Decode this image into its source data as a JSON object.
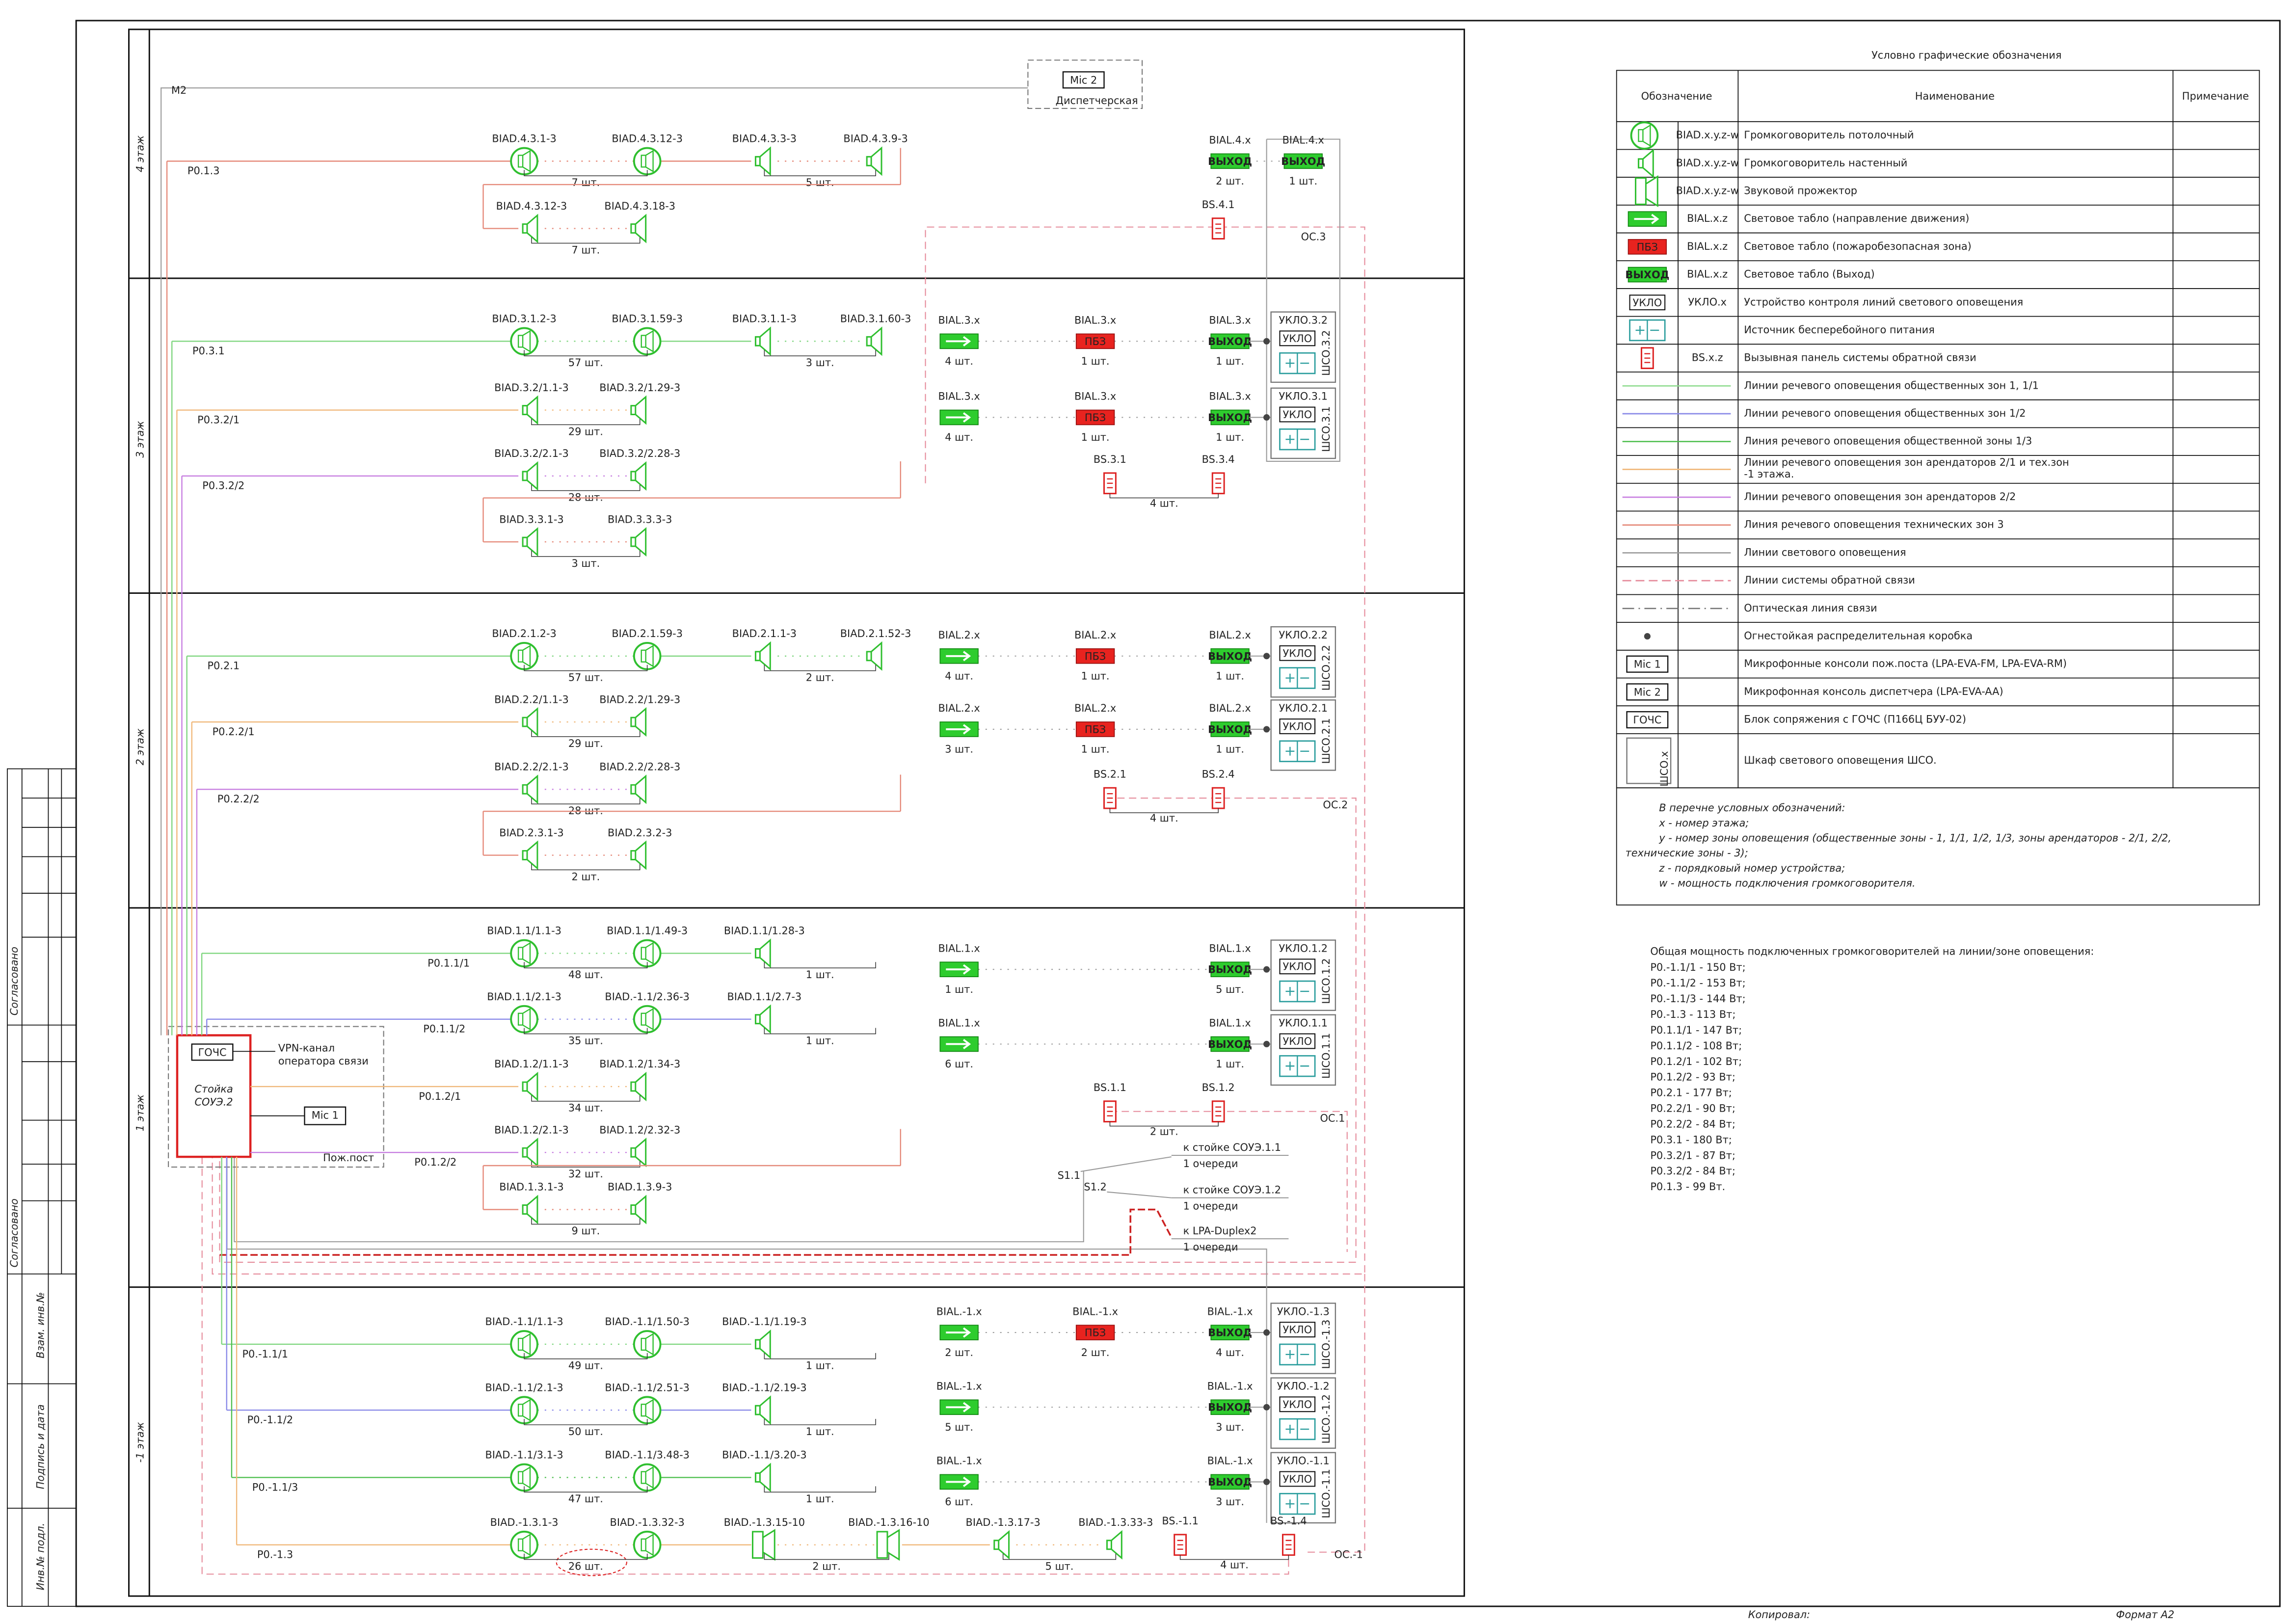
{
  "frame": {
    "side_labels": [
      "Согласовано",
      "Согласовано",
      "Взам. инв.№",
      "Подпись и дата",
      "Инв.№ подл."
    ],
    "copied": "Копировал:",
    "format": "Формат A2"
  },
  "symbols": {
    "exit": "ВЫХОД",
    "pbz": "ПБЗ",
    "uklo": "УКЛО"
  },
  "dispatch": {
    "line": "M2",
    "mic": "Mic 2",
    "room": "Диспетчерская"
  },
  "rack": {
    "gochs": "ГОЧС",
    "title": [
      "Стойка",
      "СОУЭ.2"
    ],
    "vpn": [
      "VPN-канал",
      "оператора связи"
    ],
    "mic": "Mic 1",
    "post": "Пож.пост",
    "links": [
      {
        "node": "S1.1",
        "target": "к стойке СОУЭ.1.1",
        "queue": "1 очереди"
      },
      {
        "node": "S1.2",
        "target": "к стойке СОУЭ.1.2",
        "queue": "1 очереди"
      },
      {
        "target": "к LPA-Duplex2",
        "queue": "1 очереди"
      }
    ]
  },
  "floors": [
    {
      "label": "4 этаж",
      "speaker_rows": [
        {
          "line": "P0.1.3",
          "color": "#e58a7a",
          "devices": [
            {
              "kind": "ceiling",
              "label": "BIAD.4.3.1-3"
            },
            {
              "kind": "ceiling",
              "label": "BIAD.4.3.12-3"
            },
            {
              "kind": "wall",
              "label": "BIAD.4.3.3-3"
            },
            {
              "kind": "wall",
              "label": "BIAD.4.3.9-3"
            }
          ],
          "counts": [
            "7 шт.",
            "5 шт."
          ]
        },
        {
          "color": "#e58a7a",
          "devices": [
            {
              "kind": "wall",
              "label": "BIAD.4.3.12-3"
            },
            {
              "kind": "wall",
              "label": "BIAD.4.3.18-3"
            }
          ],
          "counts": [
            "7 шт."
          ]
        }
      ],
      "light_rows": [
        {
          "devices": [
            {
              "kind": "exit",
              "label": "BIAL.4.x",
              "count": "2 шт."
            },
            {
              "kind": "exit",
              "label": "BIAL.4.x",
              "count": "1 шт."
            }
          ]
        }
      ],
      "panels": {
        "labels": [
          "BS.4.1"
        ],
        "loop": "ОС.3"
      }
    },
    {
      "label": "3 этаж",
      "speaker_rows": [
        {
          "line": "P0.3.1",
          "color": "#7fd67f",
          "devices": [
            {
              "kind": "ceiling",
              "label": "BIAD.3.1.2-3"
            },
            {
              "kind": "ceiling",
              "label": "BIAD.3.1.59-3"
            },
            {
              "kind": "wall",
              "label": "BIAD.3.1.1-3"
            },
            {
              "kind": "wall",
              "label": "BIAD.3.1.60-3"
            }
          ],
          "counts": [
            "57 шт.",
            "3 шт."
          ]
        },
        {
          "line": "P0.3.2/1",
          "color": "#f0b87a",
          "devices": [
            {
              "kind": "wall",
              "label": "BIAD.3.2/1.1-3"
            },
            {
              "kind": "wall",
              "label": "BIAD.3.2/1.29-3"
            }
          ],
          "counts": [
            "29 шт."
          ]
        },
        {
          "line": "P0.3.2/2",
          "color": "#c77ee0",
          "devices": [
            {
              "kind": "wall",
              "label": "BIAD.3.2/2.1-3"
            },
            {
              "kind": "wall",
              "label": "BIAD.3.2/2.28-3"
            }
          ],
          "counts": [
            "28 шт."
          ]
        },
        {
          "color": "#e58a7a",
          "devices": [
            {
              "kind": "wall",
              "label": "BIAD.3.3.1-3"
            },
            {
              "kind": "wall",
              "label": "BIAD.3.3.3-3"
            }
          ],
          "counts": [
            "3 шт."
          ]
        }
      ],
      "light_rows": [
        {
          "devices": [
            {
              "kind": "dir",
              "label": "BIAL.3.x",
              "count": "4 шт."
            },
            {
              "kind": "pbz",
              "label": "BIAL.3.x",
              "count": "1 шт."
            },
            {
              "kind": "exit",
              "label": "BIAL.3.x",
              "count": "1 шт."
            }
          ],
          "cabinet": {
            "uklo": "УКЛО.3.2",
            "shso": "ШСО.3.2"
          }
        },
        {
          "devices": [
            {
              "kind": "dir",
              "label": "BIAL.3.x",
              "count": "4 шт."
            },
            {
              "kind": "pbz",
              "label": "BIAL.3.x",
              "count": "1 шт."
            },
            {
              "kind": "exit",
              "label": "BIAL.3.x",
              "count": "1 шт."
            }
          ],
          "cabinet": {
            "uklo": "УКЛО.3.1",
            "shso": "ШСО.3.1"
          }
        }
      ],
      "panels": {
        "labels": [
          "BS.3.1",
          "BS.3.4"
        ],
        "count": "4 шт."
      }
    },
    {
      "label": "2 этаж",
      "speaker_rows": [
        {
          "line": "P0.2.1",
          "color": "#7fd67f",
          "devices": [
            {
              "kind": "ceiling",
              "label": "BIAD.2.1.2-3"
            },
            {
              "kind": "ceiling",
              "label": "BIAD.2.1.59-3"
            },
            {
              "kind": "wall",
              "label": "BIAD.2.1.1-3"
            },
            {
              "kind": "wall",
              "label": "BIAD.2.1.52-3"
            }
          ],
          "counts": [
            "57 шт.",
            "2 шт."
          ]
        },
        {
          "line": "P0.2.2/1",
          "color": "#f0b87a",
          "devices": [
            {
              "kind": "wall",
              "label": "BIAD.2.2/1.1-3"
            },
            {
              "kind": "wall",
              "label": "BIAD.2.2/1.29-3"
            }
          ],
          "counts": [
            "29 шт."
          ]
        },
        {
          "line": "P0.2.2/2",
          "color": "#c77ee0",
          "devices": [
            {
              "kind": "wall",
              "label": "BIAD.2.2/2.1-3"
            },
            {
              "kind": "wall",
              "label": "BIAD.2.2/2.28-3"
            }
          ],
          "counts": [
            "28 шт."
          ]
        },
        {
          "color": "#e58a7a",
          "devices": [
            {
              "kind": "wall",
              "label": "BIAD.2.3.1-3"
            },
            {
              "kind": "wall",
              "label": "BIAD.2.3.2-3"
            }
          ],
          "counts": [
            "2 шт."
          ]
        }
      ],
      "light_rows": [
        {
          "devices": [
            {
              "kind": "dir",
              "label": "BIAL.2.x",
              "count": "4 шт."
            },
            {
              "kind": "pbz",
              "label": "BIAL.2.x",
              "count": "1 шт."
            },
            {
              "kind": "exit",
              "label": "BIAL.2.x",
              "count": "1 шт."
            }
          ],
          "cabinet": {
            "uklo": "УКЛО.2.2",
            "shso": "ШСО.2.2"
          }
        },
        {
          "devices": [
            {
              "kind": "dir",
              "label": "BIAL.2.x",
              "count": "3 шт."
            },
            {
              "kind": "pbz",
              "label": "BIAL.2.x",
              "count": "1 шт."
            },
            {
              "kind": "exit",
              "label": "BIAL.2.x",
              "count": "1 шт."
            }
          ],
          "cabinet": {
            "uklo": "УКЛО.2.1",
            "shso": "ШСО.2.1"
          }
        }
      ],
      "panels": {
        "labels": [
          "BS.2.1",
          "BS.2.4"
        ],
        "count": "4 шт.",
        "loop": "ОС.2"
      }
    },
    {
      "label": "1 этаж",
      "speaker_rows": [
        {
          "line": "P0.1.1/1",
          "color": "#7fd67f",
          "devices": [
            {
              "kind": "ceiling",
              "label": "BIAD.1.1/1.1-3"
            },
            {
              "kind": "ceiling",
              "label": "BIAD.1.1/1.49-3"
            },
            {
              "kind": "wall",
              "label": "BIAD.1.1/1.28-3"
            }
          ],
          "counts": [
            "48 шт.",
            "1 шт."
          ]
        },
        {
          "line": "P0.1.1/2",
          "color": "#8a8ae8",
          "devices": [
            {
              "kind": "ceiling",
              "label": "BIAD.1.1/2.1-3"
            },
            {
              "kind": "ceiling",
              "label": "BIAD.-1.1/2.36-3"
            },
            {
              "kind": "wall",
              "label": "BIAD.1.1/2.7-3"
            }
          ],
          "counts": [
            "35 шт.",
            "1 шт."
          ]
        },
        {
          "line": "P0.1.2/1",
          "color": "#f0b87a",
          "devices": [
            {
              "kind": "wall",
              "label": "BIAD.1.2/1.1-3"
            },
            {
              "kind": "wall",
              "label": "BIAD.1.2/1.34-3"
            }
          ],
          "counts": [
            "34 шт."
          ]
        },
        {
          "line": "P0.1.2/2",
          "color": "#c77ee0",
          "devices": [
            {
              "kind": "wall",
              "label": "BIAD.1.2/2.1-3"
            },
            {
              "kind": "wall",
              "label": "BIAD.1.2/2.32-3"
            }
          ],
          "counts": [
            "32 шт."
          ]
        },
        {
          "color": "#e58a7a",
          "devices": [
            {
              "kind": "wall",
              "label": "BIAD.1.3.1-3"
            },
            {
              "kind": "wall",
              "label": "BIAD.1.3.9-3"
            }
          ],
          "counts": [
            "9 шт."
          ]
        }
      ],
      "light_rows": [
        {
          "devices": [
            {
              "kind": "dir",
              "label": "BIAL.1.x",
              "count": "1 шт."
            },
            {
              "kind": "exit",
              "label": "BIAL.1.x",
              "count": "5 шт."
            }
          ],
          "cabinet": {
            "uklo": "УКЛО.1.2",
            "shso": "ШСО.1.2"
          }
        },
        {
          "devices": [
            {
              "kind": "dir",
              "label": "BIAL.1.x",
              "count": "6 шт."
            },
            {
              "kind": "exit",
              "label": "BIAL.1.x",
              "count": "1 шт."
            }
          ],
          "cabinet": {
            "uklo": "УКЛО.1.1",
            "shso": "ШСО.1.1"
          }
        }
      ],
      "panels": {
        "labels": [
          "BS.1.1",
          "BS.1.2"
        ],
        "count": "2 шт.",
        "loop": "ОС.1"
      }
    },
    {
      "label": "-1 этаж",
      "speaker_rows": [
        {
          "line": "P0.-1.1/1",
          "color": "#7fd67f",
          "devices": [
            {
              "kind": "ceiling",
              "label": "BIAD.-1.1/1.1-3"
            },
            {
              "kind": "ceiling",
              "label": "BIAD.-1.1/1.50-3"
            },
            {
              "kind": "wall",
              "label": "BIAD.-1.1/1.19-3"
            }
          ],
          "counts": [
            "49 шт.",
            "1 шт."
          ]
        },
        {
          "line": "P0.-1.1/2",
          "color": "#8a8ae8",
          "devices": [
            {
              "kind": "ceiling",
              "label": "BIAD.-1.1/2.1-3"
            },
            {
              "kind": "ceiling",
              "label": "BIAD.-1.1/2.51-3"
            },
            {
              "kind": "wall",
              "label": "BIAD.-1.1/2.19-3"
            }
          ],
          "counts": [
            "50 шт.",
            "1 шт."
          ]
        },
        {
          "line": "P0.-1.1/3",
          "color": "#4fbf4f",
          "devices": [
            {
              "kind": "ceiling",
              "label": "BIAD.-1.1/3.1-3"
            },
            {
              "kind": "ceiling",
              "label": "BIAD.-1.1/3.48-3"
            },
            {
              "kind": "wall",
              "label": "BIAD.-1.1/3.20-3"
            }
          ],
          "counts": [
            "47 шт.",
            "1 шт."
          ]
        },
        {
          "line": "P0.-1.3",
          "color": "#f0b87a",
          "devices": [
            {
              "kind": "ceiling",
              "label": "BIAD.-1.3.1-3"
            },
            {
              "kind": "ceiling",
              "label": "BIAD.-1.3.32-3"
            },
            {
              "kind": "projector",
              "label": "BIAD.-1.3.15-10"
            },
            {
              "kind": "projector",
              "label": "BIAD.-1.3.16-10"
            },
            {
              "kind": "wall",
              "label": "BIAD.-1.3.17-3"
            },
            {
              "kind": "wall",
              "label": "BIAD.-1.3.33-3"
            }
          ],
          "counts": [
            "26 шт.",
            "2 шт.",
            "5 шт."
          ]
        }
      ],
      "light_rows": [
        {
          "devices": [
            {
              "kind": "dir",
              "label": "BIAL.-1.x",
              "count": "2 шт."
            },
            {
              "kind": "pbz",
              "label": "BIAL.-1.x",
              "count": "2 шт."
            },
            {
              "kind": "exit",
              "label": "BIAL.-1.x",
              "count": "4 шт."
            }
          ],
          "cabinet": {
            "uklo": "УКЛО.-1.3",
            "shso": "ШСО.-1.3"
          }
        },
        {
          "devices": [
            {
              "kind": "dir",
              "label": "BIAL.-1.x",
              "count": "5 шт."
            },
            {
              "kind": "exit",
              "label": "BIAL.-1.x",
              "count": "3 шт."
            }
          ],
          "cabinet": {
            "uklo": "УКЛО.-1.2",
            "shso": "ШСО.-1.2"
          }
        },
        {
          "devices": [
            {
              "kind": "dir",
              "label": "BIAL.-1.x",
              "count": "6 шт."
            },
            {
              "kind": "exit",
              "label": "BIAL.-1.x",
              "count": "3 шт."
            }
          ],
          "cabinet": {
            "uklo": "УКЛО.-1.1",
            "shso": "ШСО.-1.1"
          }
        }
      ],
      "panels": {
        "labels": [
          "BS.-1.1",
          "BS.-1.4"
        ],
        "count": "4 шт.",
        "loop": "ОС.-1"
      }
    }
  ],
  "legend": {
    "title": "Условно графические обозначения",
    "headers": [
      "Обозначение",
      "Наименование",
      "Примечание"
    ],
    "rows": [
      {
        "symbol": "ceiling",
        "code": "BIAD.x.y.z-w",
        "name": "Громкоговоритель потолочный"
      },
      {
        "symbol": "wall",
        "code": "BIAD.x.y.z-w",
        "name": "Громкоговоритель настенный"
      },
      {
        "symbol": "projector",
        "code": "BIAD.x.y.z-w",
        "name": "Звуковой прожектор"
      },
      {
        "symbol": "dir",
        "code": "BIAL.x.z",
        "name": "Световое табло (направление движения)"
      },
      {
        "symbol": "pbz",
        "code": "BIAL.x.z",
        "name": "Световое табло (пожаробезопасная зона)"
      },
      {
        "symbol": "exit",
        "code": "BIAL.x.z",
        "name": "Световое табло (Выход)"
      },
      {
        "symbol": "uklo",
        "code": "УКЛО.x",
        "name": "Устройство контроля линий светового оповещения"
      },
      {
        "symbol": "ups",
        "name": "Источник бесперебойного питания"
      },
      {
        "symbol": "bs",
        "code": "BS.x.z",
        "name": "Вызывная панель системы обратной связи"
      },
      {
        "symbol": "line",
        "color": "#8fdc8f",
        "name": "Линии речевого оповещения общественных зон 1, 1/1"
      },
      {
        "symbol": "line",
        "color": "#8a8ae8",
        "name": "Линии речевого оповещения общественных зон 1/2"
      },
      {
        "symbol": "line",
        "color": "#4fbf4f",
        "name": "Линия речевого оповещения общественной зоны 1/3"
      },
      {
        "symbol": "line",
        "color": "#f0b87a",
        "name": [
          "Линии речевого оповещения зон арендаторов 2/1  и тех.зон",
          "-1 этажа."
        ]
      },
      {
        "symbol": "line",
        "color": "#c77ee0",
        "name": "Линии речевого оповещения зон арендаторов 2/2"
      },
      {
        "symbol": "line",
        "color": "#e58a7a",
        "name": "Линия речевого оповещения технических зон 3"
      },
      {
        "symbol": "line",
        "color": "#9a9a9a",
        "name": "Линии светового оповещения"
      },
      {
        "symbol": "line",
        "color": "#e58a9a",
        "style": "dashed",
        "name": "Линии системы обратной связи"
      },
      {
        "symbol": "line",
        "color": "#777777",
        "style": "dashdot",
        "name": "Оптическая линия связи"
      },
      {
        "symbol": "dot",
        "name": "Огнестойкая распределительная коробка"
      },
      {
        "symbol": "tag",
        "code": "Mic 1",
        "name": "Микрофонные консоли пож.поста (LPA-EVA-FM, LPA-EVA-RM)"
      },
      {
        "symbol": "tag",
        "code": "Mic 2",
        "name": "Микрофонная консоль диспетчера (LPA-EVA-AA)"
      },
      {
        "symbol": "tag",
        "code": "ГОЧС",
        "name": "Блок сопряжения с ГОЧС (П166Ц БУУ-02)"
      },
      {
        "symbol": "cabinet",
        "code": "ШСО.х",
        "name": "Шкаф светового оповещения ШСО."
      }
    ],
    "notes": [
      "В перечне условных обозначений:",
      "x - номер этажа;",
      "y - номер зоны оповещения (общественные зоны - 1, 1/1, 1/2, 1/3, зоны арендаторов - 2/1, 2/2,",
      "технические зоны - 3);",
      "z - порядковый номер устройства;",
      "w - мощность подключения громкоговорителя."
    ]
  },
  "power": {
    "title": "Общая мощность подключенных громкоговорителей на линии/зоне оповещения:",
    "lines": [
      "P0.-1.1/1 - 150 Вт;",
      "P0.-1.1/2 - 153 Вт;",
      "P0.-1.1/3 - 144 Вт;",
      "P0.-1.3 - 113 Вт;",
      "P0.1.1/1 - 147 Вт;",
      "P0.1.1/2 - 108 Вт;",
      "P0.1.2/1 - 102 Вт;",
      "P0.1.2/2 - 93 Вт;",
      "P0.2.1 - 177 Вт;",
      "P0.2.2/1 - 90 Вт;",
      "P0.2.2/2 - 84 Вт;",
      "P0.3.1 - 180 Вт;",
      "P0.3.2/1 - 87 Вт;",
      "P0.3.2/2 - 84 Вт;",
      "P0.1.3 - 99 Вт."
    ]
  }
}
